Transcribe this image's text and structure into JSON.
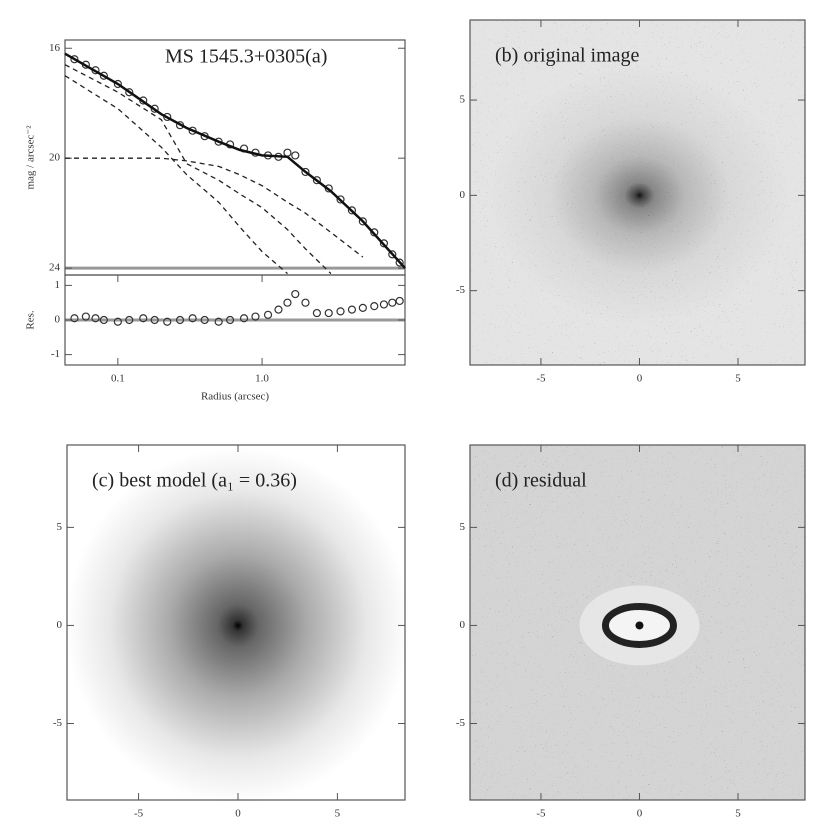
{
  "chart_data": [
    {
      "type": "line",
      "title": "MS 1545.3+0305(a)",
      "ylabel": "mag / arcsec⁻²",
      "xscale": "log",
      "xlim": [
        0.043,
        9.8
      ],
      "ylim": [
        24.25,
        15.7
      ],
      "yticks": [
        16,
        20,
        24
      ],
      "hline": 24,
      "series": [
        {
          "style": "points",
          "color": "#333333",
          "x": [
            0.05,
            0.06,
            0.07,
            0.08,
            0.1,
            0.12,
            0.15,
            0.18,
            0.22,
            0.27,
            0.33,
            0.4,
            0.5,
            0.6,
            0.75,
            0.9,
            1.1,
            1.3,
            1.5,
            1.7,
            2.0,
            2.4,
            2.9,
            3.5,
            4.2,
            5,
            6,
            7,
            8,
            9
          ],
          "values": [
            16.4,
            16.6,
            16.8,
            17.0,
            17.3,
            17.6,
            17.9,
            18.2,
            18.5,
            18.8,
            19.0,
            19.2,
            19.4,
            19.5,
            19.65,
            19.8,
            19.9,
            19.95,
            19.8,
            19.9,
            20.5,
            20.8,
            21.1,
            21.5,
            21.9,
            22.3,
            22.7,
            23.1,
            23.5,
            23.8
          ]
        },
        {
          "style": "solid",
          "color": "#111111",
          "x": [
            0.043,
            0.1,
            0.2,
            0.3,
            0.5,
            0.7,
            1,
            1.5,
            2,
            3,
            5,
            9.8
          ],
          "values": [
            16.2,
            17.3,
            18.4,
            18.9,
            19.4,
            19.7,
            19.9,
            19.95,
            20.5,
            21.2,
            22.3,
            24.0
          ]
        },
        {
          "style": "dashed",
          "color": "#222222",
          "x": [
            0.043,
            0.1,
            0.2,
            0.3,
            0.5,
            0.7,
            1,
            1.5,
            2,
            3,
            5,
            9.8
          ],
          "values": [
            17.0,
            18.2,
            19.6,
            20.6,
            21.6,
            22.5,
            23.4,
            24.2,
            null,
            null,
            null,
            null
          ]
        },
        {
          "style": "dashed",
          "color": "#222222",
          "x": [
            0.043,
            0.1,
            0.2,
            0.3,
            0.5,
            0.7,
            1,
            1.5,
            2,
            3,
            5,
            9.8
          ],
          "values": [
            16.6,
            17.6,
            18.6,
            20.2,
            20.8,
            21.3,
            21.8,
            22.6,
            23.3,
            24.2,
            null,
            null
          ]
        },
        {
          "style": "dashed",
          "color": "#222222",
          "x": [
            0.043,
            0.1,
            0.2,
            0.3,
            0.5,
            0.7,
            1,
            1.5,
            2,
            3,
            5,
            9.8
          ],
          "values": [
            20.0,
            20.0,
            20.0,
            20.1,
            20.3,
            20.6,
            21.0,
            21.6,
            22.0,
            22.7,
            23.6,
            null
          ]
        }
      ]
    },
    {
      "type": "scatter",
      "xlabel": "Radius (arcsec)",
      "ylabel": "Res.",
      "xscale": "log",
      "xlim": [
        0.043,
        9.8
      ],
      "xticks": [
        0.1,
        {
          "value": 1,
          "label": "1.0"
        }
      ],
      "ylim": [
        -1.3,
        1.3
      ],
      "yticks": [
        -1,
        0,
        1
      ],
      "hline": 0,
      "color": "#333333",
      "x": [
        0.05,
        0.06,
        0.07,
        0.08,
        0.1,
        0.12,
        0.15,
        0.18,
        0.22,
        0.27,
        0.33,
        0.4,
        0.5,
        0.6,
        0.75,
        0.9,
        1.1,
        1.3,
        1.5,
        1.7,
        2.0,
        2.4,
        2.9,
        3.5,
        4.2,
        5,
        6,
        7,
        8,
        9
      ],
      "values": [
        0.05,
        0.1,
        0.05,
        0,
        -0.05,
        0,
        0.05,
        0,
        -0.05,
        0,
        0.05,
        0,
        -0.05,
        0,
        0.05,
        0.1,
        0.15,
        0.3,
        0.5,
        0.75,
        0.5,
        0.2,
        0.2,
        0.25,
        0.3,
        0.35,
        0.4,
        0.45,
        0.5,
        0.55
      ]
    },
    {
      "type": "image",
      "title": "(b) original image",
      "xlim": [
        -8.6,
        8.4
      ],
      "ylim": [
        -8.9,
        9.2
      ],
      "xticks": [
        -5,
        0,
        5
      ],
      "yticks": [
        -5,
        0,
        5
      ]
    },
    {
      "type": "image",
      "title": "(c) best model (a₁ = 0.36)",
      "xlim": [
        -8.6,
        8.4
      ],
      "ylim": [
        -8.9,
        9.2
      ],
      "xticks": [
        -5,
        0,
        5
      ],
      "yticks": [
        -5,
        0,
        5
      ]
    },
    {
      "type": "image",
      "title": "(d) residual",
      "xlim": [
        -8.6,
        8.4
      ],
      "ylim": [
        -8.9,
        9.2
      ],
      "xticks": [
        -5,
        0,
        5
      ],
      "yticks": [
        -5,
        0,
        5
      ]
    }
  ]
}
